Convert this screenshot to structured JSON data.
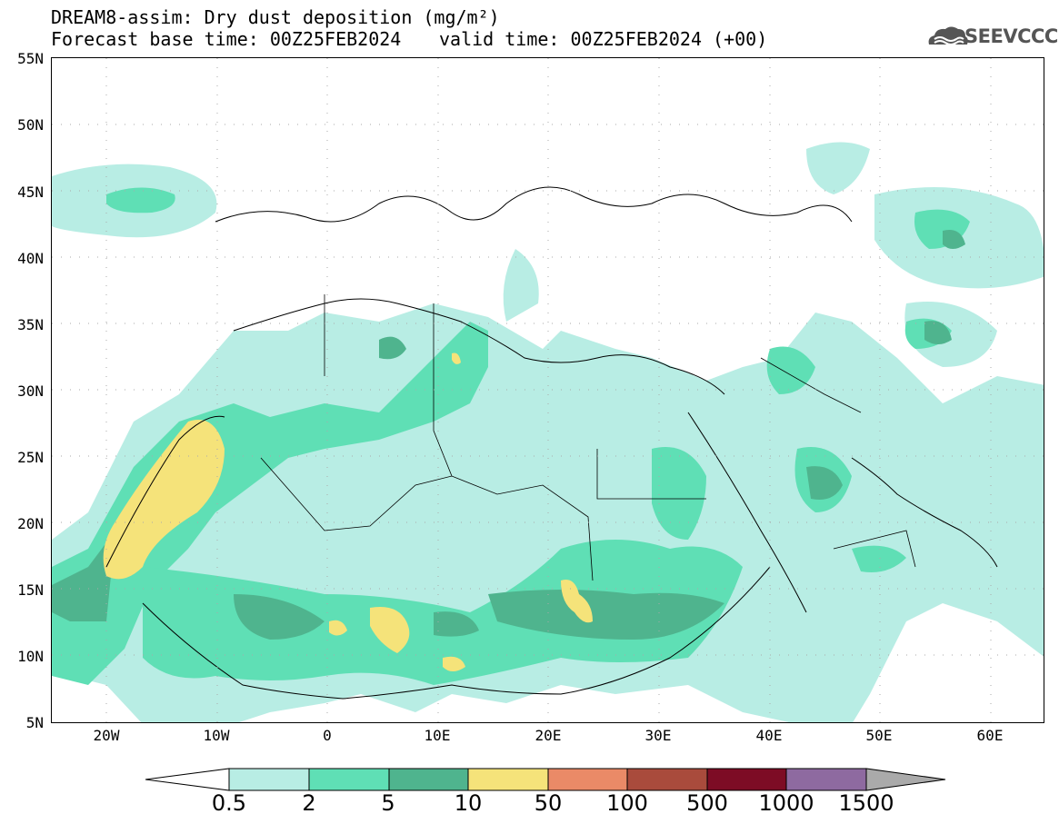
{
  "title": {
    "line1": "DREAM8-assim: Dry dust deposition (mg/m²)",
    "line2": "Forecast base time: 00Z25FEB2024",
    "line3": "valid time: 00Z25FEB2024 (+00)"
  },
  "logo": {
    "text": "SEEVCCC",
    "icon": "cloud-icon"
  },
  "axes": {
    "lat_labels": [
      "55N",
      "50N",
      "45N",
      "40N",
      "35N",
      "30N",
      "25N",
      "20N",
      "15N",
      "10N",
      "5N"
    ],
    "lon_labels": [
      "20W",
      "10W",
      "0",
      "10E",
      "20E",
      "30E",
      "40E",
      "50E",
      "60E"
    ]
  },
  "colorbar": {
    "labels": [
      "0.5",
      "2",
      "5",
      "10",
      "50",
      "100",
      "500",
      "1000",
      "1500"
    ],
    "colors": [
      "#b8ede4",
      "#5fdfb5",
      "#4fb48e",
      "#f5e37a",
      "#ea8a67",
      "#a94b3c",
      "#7d0c25",
      "#8e6aa0",
      "#aaaaaa"
    ]
  }
}
